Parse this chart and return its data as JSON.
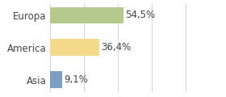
{
  "categories": [
    "Europa",
    "America",
    "Asia"
  ],
  "values": [
    54.5,
    36.4,
    9.1
  ],
  "labels": [
    "54,5%",
    "36,4%",
    "9,1%"
  ],
  "bar_colors": [
    "#b5c98e",
    "#f5d98b",
    "#7b9ec4"
  ],
  "background_color": "#ffffff",
  "xlim": [
    0,
    110
  ],
  "label_fontsize": 8.5,
  "value_fontsize": 8.5,
  "bar_height": 0.52
}
